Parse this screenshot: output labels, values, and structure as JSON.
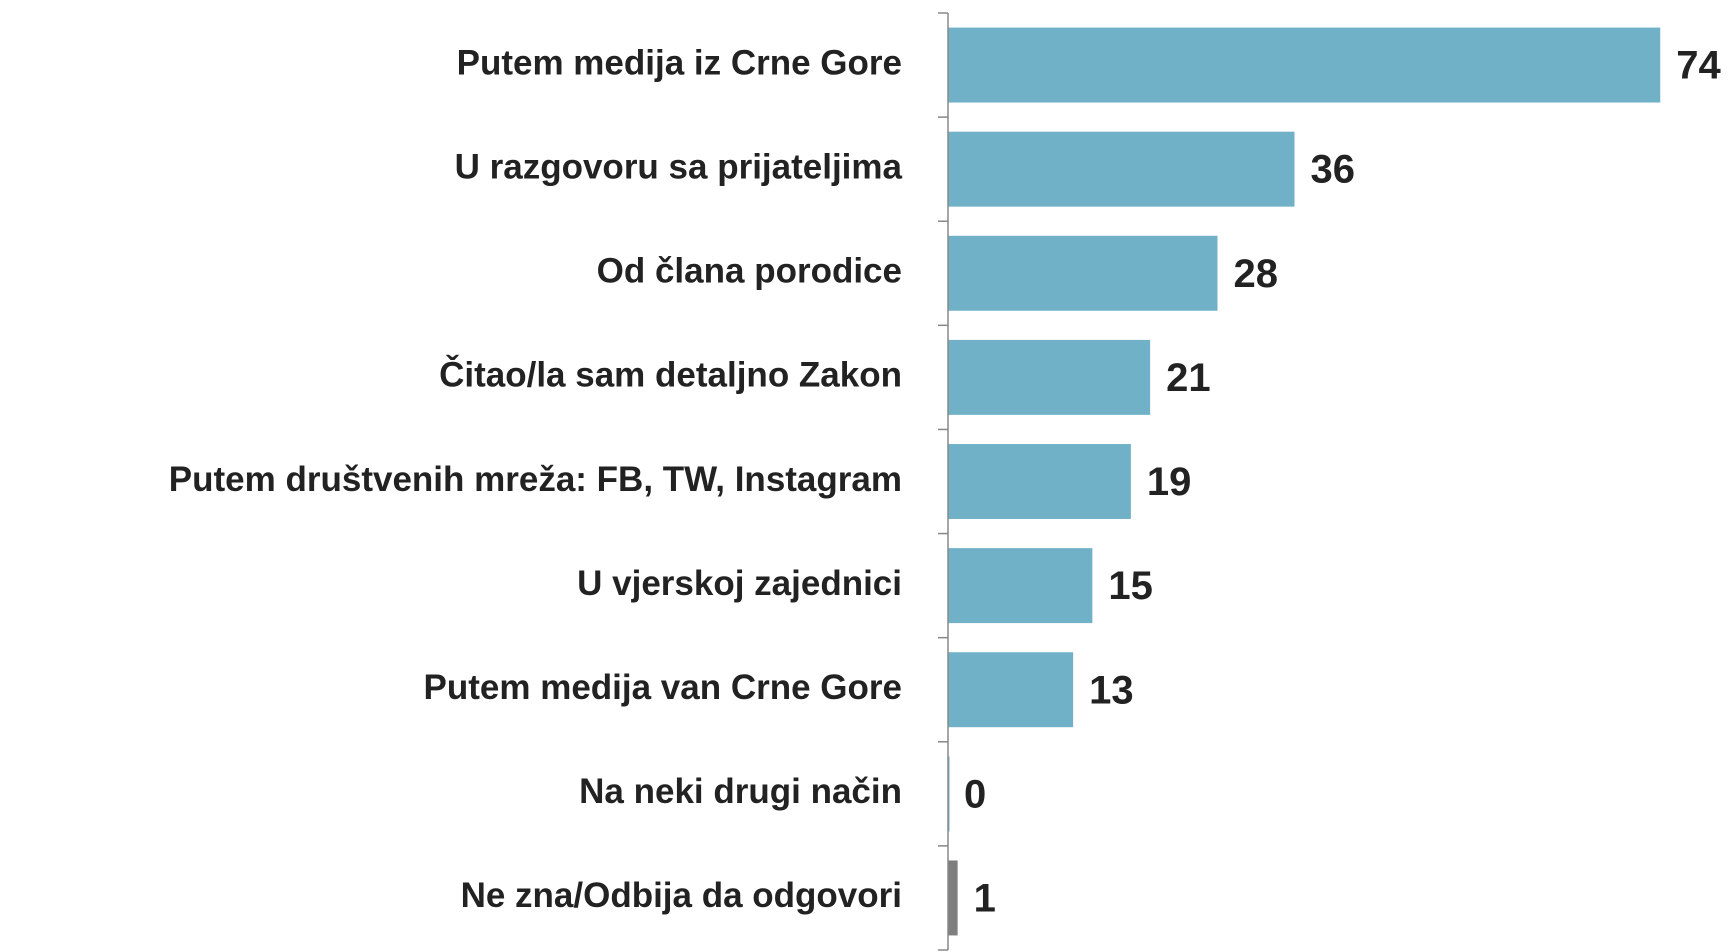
{
  "chart_data": {
    "type": "bar",
    "orientation": "horizontal",
    "categories": [
      "Putem medija iz Crne Gore",
      "U razgovoru sa prijateljima",
      "Od člana porodice",
      "Čitao/la sam detaljno Zakon",
      "Putem društvenih mreža: FB, TW, Instagram",
      "U vjerskoj zajednici",
      "Putem medija van Crne Gore",
      "Na neki drugi način",
      "Ne zna/Odbija da odgovori"
    ],
    "values": [
      74,
      36,
      28,
      21,
      19,
      15,
      13,
      0,
      1
    ],
    "colors": [
      "#71b1c8",
      "#71b1c8",
      "#71b1c8",
      "#71b1c8",
      "#71b1c8",
      "#71b1c8",
      "#71b1c8",
      "#71b1c8",
      "#7f7f7f"
    ],
    "xlim": [
      0,
      80
    ]
  }
}
